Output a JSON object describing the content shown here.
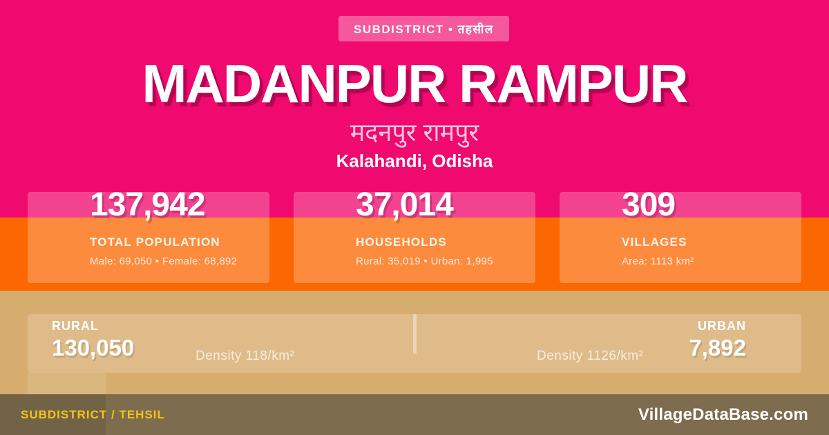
{
  "colors": {
    "pink": "#F0096E",
    "badge_pink": "#F45A9B",
    "orange": "#FB6702",
    "tan": "#D7AD6F",
    "footer": "#7D6C4D",
    "yellow": "#F3C616",
    "hindi-pink": "#FFC5DC",
    "text_white": "#FFFFFF"
  },
  "badge": {
    "label": "SUBDISTRICT • तहसील"
  },
  "header": {
    "title": "MADANPUR RAMPUR",
    "title_native": "मदनपुर रामपुर",
    "location": "Kalahandi, Odisha"
  },
  "stats": [
    {
      "value": "137,942",
      "label": "TOTAL POPULATION",
      "detail": "Male: 69,050 • Female: 68,892"
    },
    {
      "value": "37,014",
      "label": "HOUSEHOLDS",
      "detail": "Rural: 35,019 • Urban: 1,995"
    },
    {
      "value": "309",
      "label": "VILLAGES",
      "detail": "Area: 1113 km²"
    }
  ],
  "split": {
    "rural": {
      "label": "RURAL",
      "value": "130,050",
      "density": "Density 118/km²"
    },
    "urban": {
      "label": "URBAN",
      "value": "7,892",
      "density": "Density 1126/km²"
    }
  },
  "footer": {
    "type_label": "SUBDISTRICT / TEHSIL",
    "brand": "VillageDataBase.com"
  }
}
